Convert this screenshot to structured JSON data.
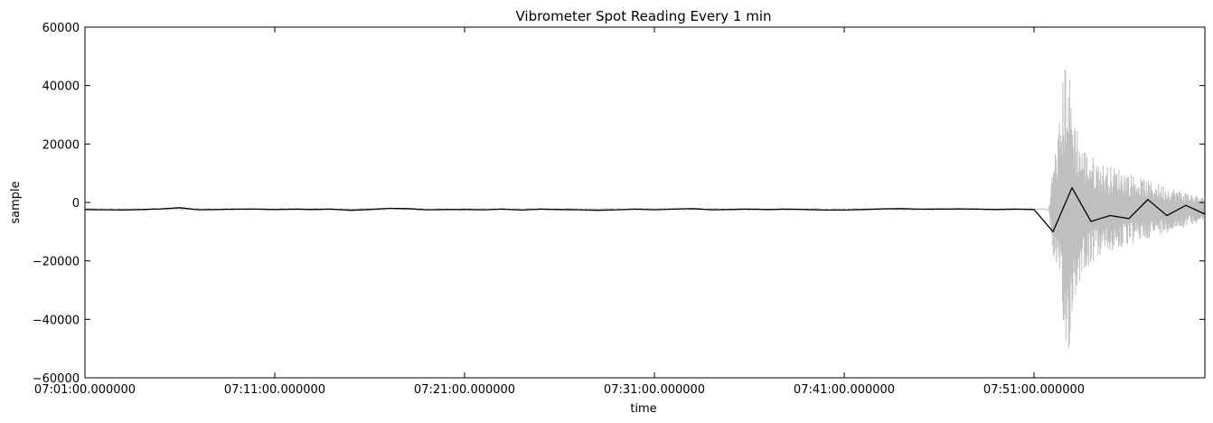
{
  "chart_data": {
    "type": "line",
    "title": "Vibrometer Spot Reading Every 1 min",
    "xlabel": "time",
    "ylabel": "sample",
    "ylim": [
      -60000,
      60000
    ],
    "xlim_minutes": [
      0,
      59
    ],
    "x_start_label": "07:01:00.000000",
    "grid": false,
    "legend": "none",
    "xticks": [
      {
        "x": 0,
        "label": "07:01:00.000000"
      },
      {
        "x": 10,
        "label": "07:11:00.000000"
      },
      {
        "x": 20,
        "label": "07:21:00.000000"
      },
      {
        "x": 30,
        "label": "07:31:00.000000"
      },
      {
        "x": 40,
        "label": "07:41:00.000000"
      },
      {
        "x": 50,
        "label": "07:51:00.000000"
      }
    ],
    "yticks": [
      {
        "y": 60000,
        "label": "60000"
      },
      {
        "y": 40000,
        "label": "40000"
      },
      {
        "y": 20000,
        "label": "20000"
      },
      {
        "y": 0,
        "label": "0"
      },
      {
        "y": -20000,
        "label": "−20000"
      },
      {
        "y": -40000,
        "label": "−40000"
      },
      {
        "y": -60000,
        "label": "−60000"
      }
    ],
    "series": [
      {
        "color": "#bfbfbf",
        "style": "raw vibration signal",
        "quiet_level": -2300,
        "quiet_until": 50.8,
        "envelope": [
          {
            "x": 50.8,
            "amp": 2000
          },
          {
            "x": 51.0,
            "amp": 16000
          },
          {
            "x": 51.3,
            "amp": 28000
          },
          {
            "x": 51.7,
            "amp": 58000
          },
          {
            "x": 52.0,
            "amp": 38000
          },
          {
            "x": 52.5,
            "amp": 22000
          },
          {
            "x": 53.5,
            "amp": 16000
          },
          {
            "x": 54.5,
            "amp": 14000
          },
          {
            "x": 56.0,
            "amp": 10000
          },
          {
            "x": 58.0,
            "amp": 6000
          },
          {
            "x": 59.0,
            "amp": 4000
          }
        ]
      },
      {
        "color": "#000000",
        "style": "1-minute spot reading",
        "x": [
          0,
          1,
          2,
          3,
          4,
          5,
          6,
          7,
          8,
          9,
          10,
          11,
          12,
          13,
          14,
          15,
          16,
          17,
          18,
          19,
          20,
          21,
          22,
          23,
          24,
          25,
          26,
          27,
          28,
          29,
          30,
          31,
          32,
          33,
          34,
          35,
          36,
          37,
          38,
          39,
          40,
          41,
          42,
          43,
          44,
          45,
          46,
          47,
          48,
          49,
          50,
          51,
          52,
          53,
          54,
          55,
          56,
          57,
          58,
          59
        ],
        "y": [
          -2400,
          -2500,
          -2600,
          -2400,
          -2200,
          -1800,
          -2500,
          -2400,
          -2300,
          -2300,
          -2400,
          -2300,
          -2400,
          -2300,
          -2700,
          -2400,
          -2000,
          -2100,
          -2500,
          -2400,
          -2400,
          -2500,
          -2300,
          -2600,
          -2300,
          -2400,
          -2500,
          -2700,
          -2500,
          -2300,
          -2500,
          -2300,
          -2100,
          -2500,
          -2400,
          -2300,
          -2400,
          -2300,
          -2400,
          -2600,
          -2600,
          -2400,
          -2200,
          -2100,
          -2300,
          -2300,
          -2200,
          -2300,
          -2400,
          -2300,
          -2400,
          -10000,
          5000,
          -6500,
          -4500,
          -5500,
          1000,
          -4500,
          -1000,
          -4000
        ]
      }
    ]
  }
}
